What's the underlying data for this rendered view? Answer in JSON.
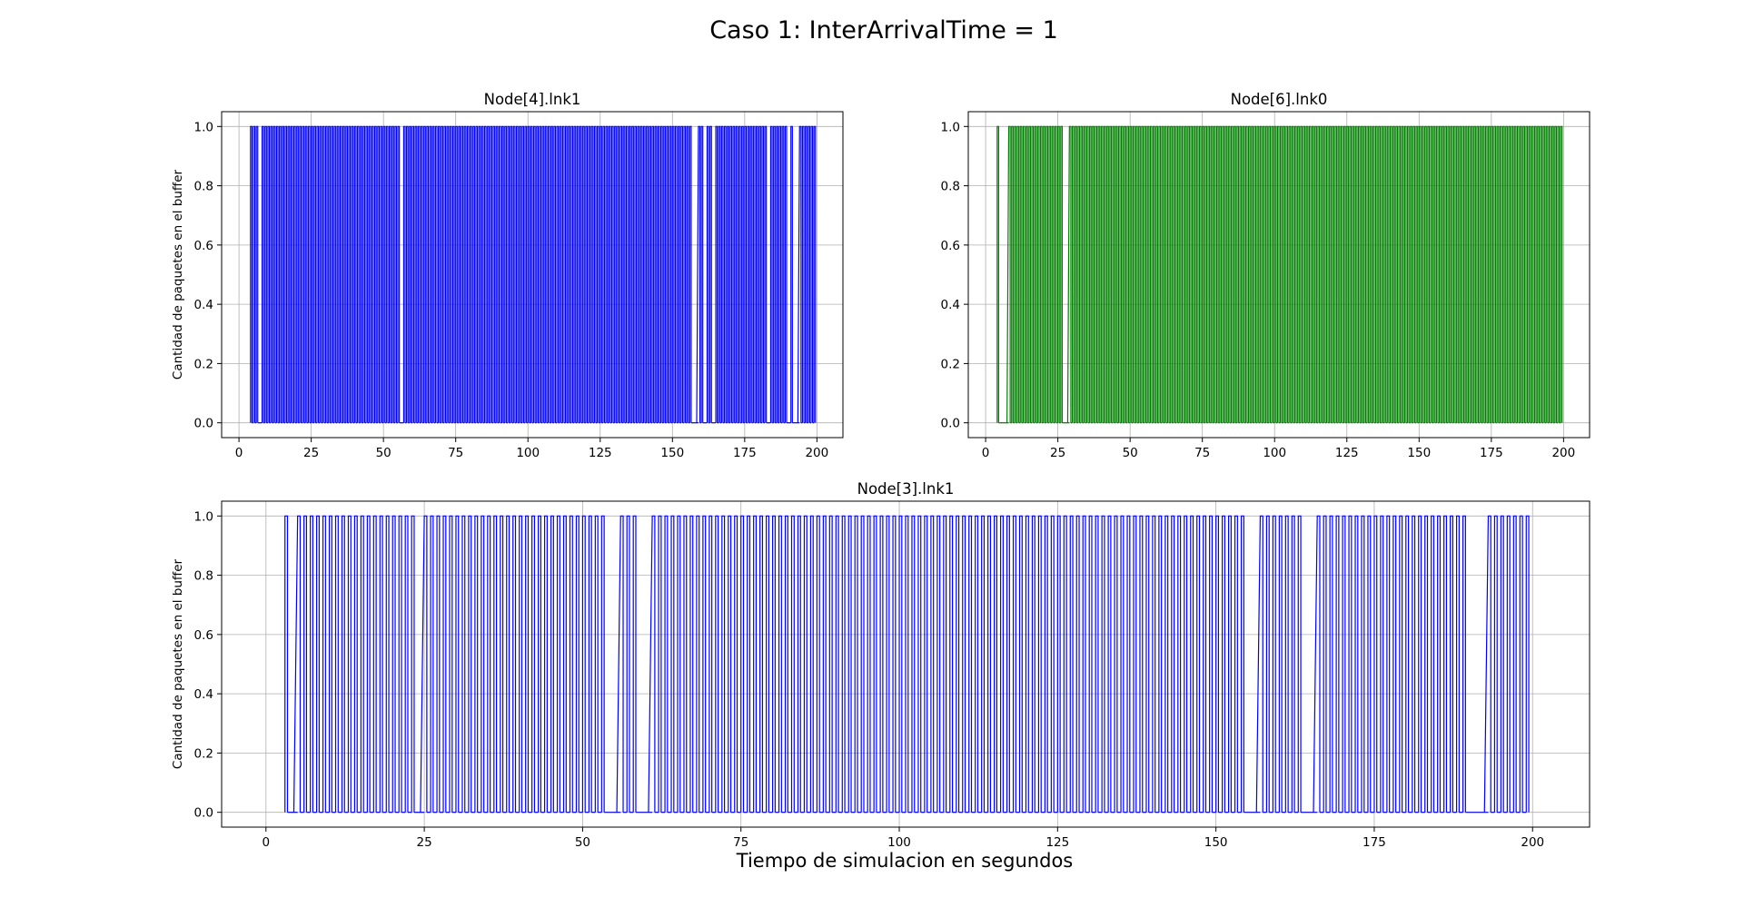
{
  "figure": {
    "suptitle": "Caso 1: InterArrivalTime = 1",
    "xlabel": "Tiempo de simulacion en segundos"
  },
  "chart_data": [
    {
      "type": "line",
      "title": "Node[4].lnk1",
      "ylabel": "Cantidad de paquetes en el buffer",
      "xlabel": "",
      "xlim": [
        -6,
        209
      ],
      "ylim": [
        -0.05,
        1.05
      ],
      "xticks": [
        0,
        25,
        50,
        75,
        100,
        125,
        150,
        175,
        200
      ],
      "yticks": [
        0.0,
        0.2,
        0.4,
        0.6,
        0.8,
        1.0
      ],
      "ytick_labels": [
        "0.0",
        "0.2",
        "0.4",
        "0.6",
        "0.8",
        "1.0"
      ],
      "grid": true,
      "color": "#0000ff",
      "description_of_signal": "0/1 buffer occupancy; packet arrives (0->1) and departs shortly after",
      "x_range": [
        4,
        200
      ],
      "pulse_width": 0.5,
      "pulses": [
        4,
        5,
        6,
        8,
        9,
        10,
        11,
        12,
        13,
        14,
        15,
        16,
        17,
        18,
        19,
        20,
        21,
        22,
        23,
        24,
        25,
        26,
        27,
        28,
        29,
        30,
        31,
        32,
        33,
        34,
        35,
        36,
        37,
        38,
        39,
        40,
        41,
        42,
        43,
        44,
        45,
        46,
        47,
        48,
        49,
        50,
        51,
        52,
        53,
        54,
        55,
        57,
        58,
        59,
        60,
        61,
        62,
        63,
        64,
        65,
        66,
        67,
        68,
        69,
        70,
        71,
        72,
        73,
        74,
        75,
        76,
        77,
        78,
        79,
        80,
        81,
        82,
        83,
        84,
        85,
        86,
        87,
        88,
        89,
        90,
        91,
        92,
        93,
        94,
        95,
        96,
        97,
        98,
        99,
        100,
        101,
        102,
        103,
        104,
        105,
        106,
        107,
        108,
        109,
        110,
        111,
        112,
        113,
        114,
        115,
        116,
        117,
        118,
        119,
        120,
        121,
        122,
        123,
        124,
        125,
        126,
        127,
        128,
        129,
        130,
        131,
        132,
        133,
        134,
        135,
        136,
        137,
        138,
        139,
        140,
        141,
        142,
        143,
        144,
        145,
        146,
        147,
        148,
        149,
        150,
        151,
        152,
        153,
        154,
        155,
        156,
        159,
        160,
        162,
        163,
        165,
        166,
        167,
        168,
        169,
        170,
        171,
        172,
        173,
        174,
        175,
        176,
        177,
        178,
        179,
        180,
        181,
        182,
        184,
        185,
        186,
        187,
        188,
        189,
        191,
        194,
        195,
        196,
        197,
        198,
        199
      ]
    },
    {
      "type": "line",
      "title": "Node[6].lnk0",
      "ylabel": "",
      "xlabel": "",
      "xlim": [
        -6,
        209
      ],
      "ylim": [
        -0.05,
        1.05
      ],
      "xticks": [
        0,
        25,
        50,
        75,
        100,
        125,
        150,
        175,
        200
      ],
      "yticks": [
        0.0,
        0.2,
        0.4,
        0.6,
        0.8,
        1.0
      ],
      "ytick_labels": [
        "0.0",
        "0.2",
        "0.4",
        "0.6",
        "0.8",
        "1.0"
      ],
      "grid": true,
      "color": "#008000",
      "x_range": [
        4,
        200
      ],
      "pulse_width": 0.5,
      "pulses": [
        4,
        8,
        9,
        10,
        11,
        12,
        13,
        14,
        15,
        16,
        17,
        18,
        19,
        20,
        21,
        22,
        23,
        24,
        25,
        26,
        29,
        30,
        31,
        32,
        33,
        34,
        35,
        36,
        37,
        38,
        39,
        40,
        41,
        42,
        43,
        44,
        45,
        46,
        47,
        48,
        49,
        50,
        51,
        52,
        53,
        54,
        55,
        56,
        57,
        58,
        59,
        60,
        61,
        62,
        63,
        64,
        65,
        66,
        67,
        68,
        69,
        70,
        71,
        72,
        73,
        74,
        75,
        76,
        77,
        78,
        79,
        80,
        81,
        82,
        83,
        84,
        85,
        86,
        87,
        88,
        89,
        90,
        91,
        92,
        93,
        94,
        95,
        96,
        97,
        98,
        99,
        100,
        101,
        102,
        103,
        104,
        105,
        106,
        107,
        108,
        109,
        110,
        111,
        112,
        113,
        114,
        115,
        116,
        117,
        118,
        119,
        120,
        121,
        122,
        123,
        124,
        125,
        126,
        127,
        128,
        129,
        130,
        131,
        132,
        133,
        134,
        135,
        136,
        137,
        138,
        139,
        140,
        141,
        142,
        143,
        144,
        145,
        146,
        147,
        148,
        149,
        150,
        151,
        152,
        153,
        154,
        155,
        156,
        157,
        158,
        159,
        160,
        161,
        162,
        163,
        164,
        165,
        166,
        167,
        168,
        169,
        170,
        171,
        172,
        173,
        174,
        175,
        176,
        177,
        178,
        179,
        180,
        181,
        182,
        183,
        184,
        185,
        186,
        187,
        188,
        189,
        190,
        191,
        192,
        193,
        194,
        195,
        196,
        197,
        198,
        199
      ]
    },
    {
      "type": "line",
      "title": "Node[3].lnk1",
      "ylabel": "Cantidad de paquetes en el buffer",
      "xlabel": "Tiempo de simulacion en segundos",
      "xlim": [
        -7,
        209
      ],
      "ylim": [
        -0.05,
        1.05
      ],
      "xticks": [
        0,
        25,
        50,
        75,
        100,
        125,
        150,
        175,
        200
      ],
      "yticks": [
        0.0,
        0.2,
        0.4,
        0.6,
        0.8,
        1.0
      ],
      "ytick_labels": [
        "0.0",
        "0.2",
        "0.4",
        "0.6",
        "0.8",
        "1.0"
      ],
      "grid": true,
      "color": "#0000ff",
      "x_range": [
        3,
        200
      ],
      "pulse_width": 0.4,
      "pulses": [
        3,
        5,
        6,
        7,
        8,
        9,
        10,
        11,
        12,
        13,
        14,
        15,
        16,
        17,
        18,
        19,
        20,
        21,
        22,
        23,
        25,
        26,
        27,
        28,
        29,
        30,
        31,
        32,
        33,
        34,
        35,
        36,
        37,
        38,
        39,
        40,
        41,
        42,
        43,
        44,
        45,
        46,
        47,
        48,
        49,
        50,
        51,
        52,
        53,
        56,
        57,
        58,
        61,
        62,
        63,
        64,
        65,
        66,
        67,
        68,
        69,
        70,
        71,
        72,
        73,
        74,
        75,
        76,
        77,
        78,
        79,
        80,
        81,
        82,
        83,
        84,
        85,
        86,
        87,
        88,
        89,
        90,
        91,
        92,
        93,
        94,
        95,
        96,
        97,
        98,
        99,
        100,
        101,
        102,
        103,
        104,
        105,
        106,
        107,
        108,
        109,
        110,
        111,
        112,
        113,
        114,
        115,
        116,
        117,
        118,
        119,
        120,
        121,
        122,
        123,
        124,
        125,
        126,
        127,
        128,
        129,
        130,
        131,
        132,
        133,
        134,
        135,
        136,
        137,
        138,
        139,
        140,
        141,
        142,
        143,
        144,
        145,
        146,
        147,
        148,
        149,
        150,
        151,
        152,
        153,
        154,
        157,
        158,
        159,
        160,
        161,
        162,
        163,
        166,
        167,
        168,
        169,
        170,
        171,
        172,
        173,
        174,
        175,
        176,
        177,
        178,
        179,
        180,
        181,
        182,
        183,
        184,
        185,
        186,
        187,
        188,
        189,
        193,
        194,
        195,
        196,
        197,
        198,
        199
      ]
    }
  ]
}
